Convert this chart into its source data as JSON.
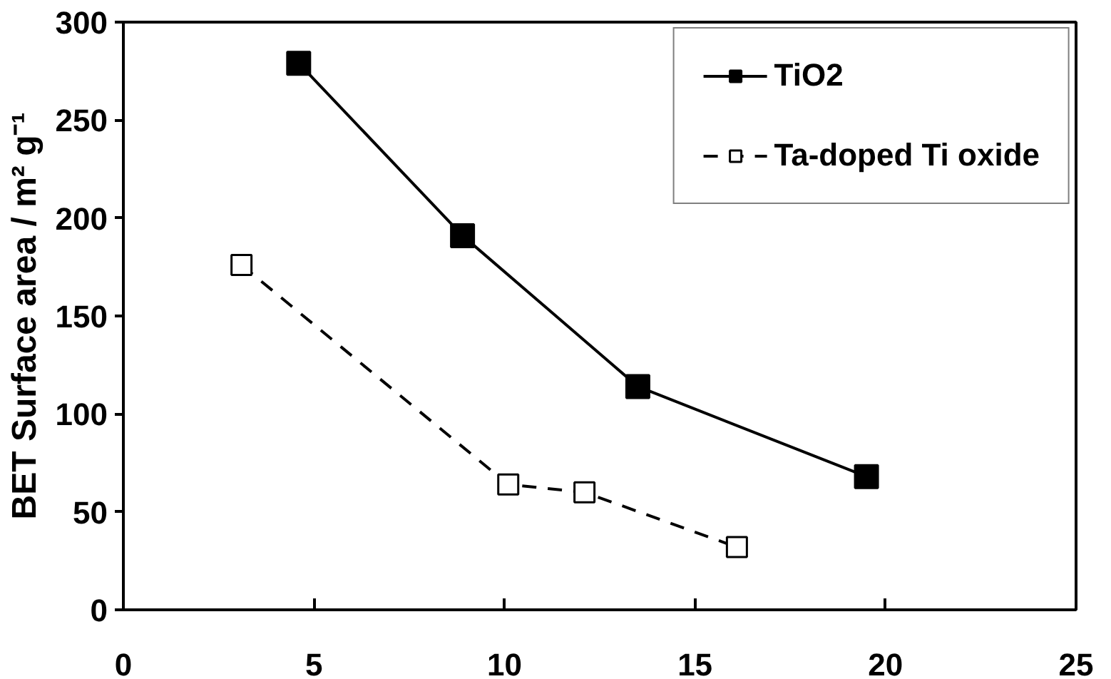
{
  "chart_data": {
    "type": "line",
    "ylabel": "BET Surface area / m² g⁻¹",
    "xlim": [
      0,
      25
    ],
    "xticks": [
      0,
      5,
      10,
      15,
      20,
      25
    ],
    "ylim": [
      0,
      300
    ],
    "yticks": [
      0,
      50,
      100,
      150,
      200,
      250,
      300
    ],
    "grid": false,
    "legend": "top right",
    "series": [
      {
        "name": "TiO2",
        "color": "#000000",
        "x": [
          4.6,
          8.9,
          13.5,
          19.5
        ],
        "values": [
          279,
          191,
          114,
          68
        ],
        "marker": "square",
        "line_style": "solid"
      },
      {
        "name": "Ta-doped Ti oxide",
        "color": "#000000",
        "x": [
          3.1,
          10.1,
          12.1,
          16.1
        ],
        "values": [
          176,
          64,
          60,
          32
        ],
        "marker": "square",
        "line_style": "dashed"
      }
    ]
  }
}
